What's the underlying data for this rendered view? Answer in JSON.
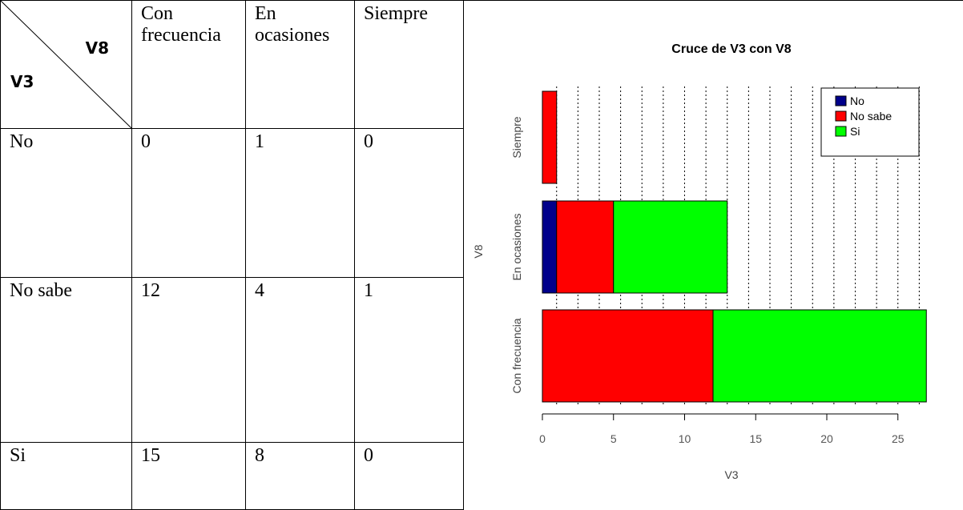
{
  "table": {
    "corner": {
      "col_var": "V8",
      "row_var": "V3"
    },
    "col_headers": [
      "Con frecuencia",
      "En ocasiones",
      "Siempre"
    ],
    "rows": [
      {
        "label": "No",
        "values": [
          "0",
          "1",
          "0"
        ]
      },
      {
        "label": "No sabe",
        "values": [
          "12",
          "4",
          "1"
        ]
      },
      {
        "label": "Si",
        "values": [
          "15",
          "8",
          "0"
        ]
      }
    ]
  },
  "chart_data": {
    "type": "bar",
    "orientation": "horizontal",
    "stacked": true,
    "title": "Cruce de V3 con V8",
    "xlabel": "V3",
    "ylabel": "V8",
    "categories": [
      "Con frecuencia",
      "En ocasiones",
      "Siempre"
    ],
    "series": [
      {
        "name": "No",
        "color": "#00008b",
        "values": [
          0,
          1,
          0
        ]
      },
      {
        "name": "No sabe",
        "color": "#ff0000",
        "values": [
          12,
          4,
          1
        ]
      },
      {
        "name": "Si",
        "color": "#00ff00",
        "values": [
          15,
          8,
          0
        ]
      }
    ],
    "xlim": [
      0,
      27
    ],
    "xticks": [
      "0",
      "5",
      "10",
      "15",
      "20",
      "25"
    ],
    "grid": "vertical dotted",
    "legend_position": "top-right"
  }
}
